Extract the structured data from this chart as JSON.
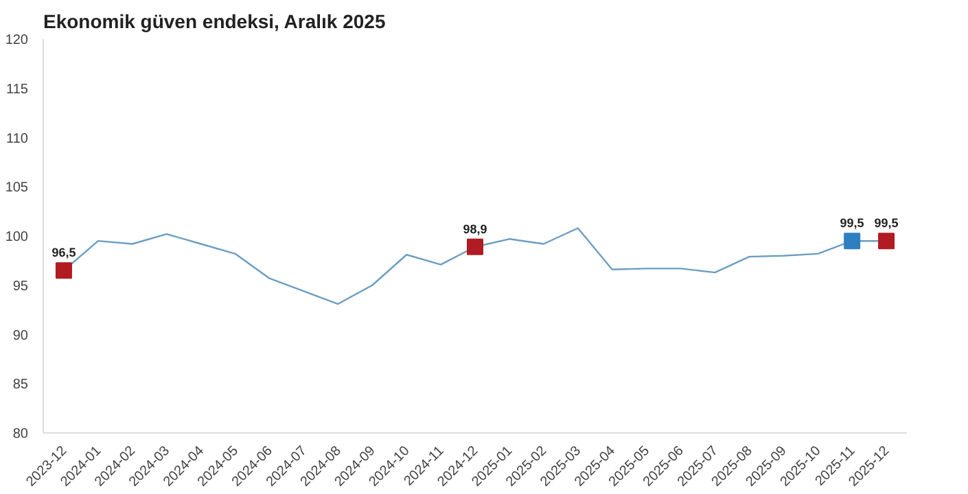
{
  "chart_data": {
    "type": "line",
    "title": "Ekonomik güven endeksi, Aralık 2025",
    "categories": [
      "2023-12",
      "2024-01",
      "2024-02",
      "2024-03",
      "2024-04",
      "2024-05",
      "2024-06",
      "2024-07",
      "2024-08",
      "2024-09",
      "2024-10",
      "2024-11",
      "2024-12",
      "2025-01",
      "2025-02",
      "2025-03",
      "2025-04",
      "2025-05",
      "2025-06",
      "2025-07",
      "2025-08",
      "2025-09",
      "2025-10",
      "2025-11",
      "2025-12"
    ],
    "series": [
      {
        "color": "#6b9dc2",
        "marker": "none",
        "values": [
          96.5,
          99.5,
          99.2,
          100.2,
          99.2,
          98.2,
          95.7,
          94.4,
          93.1,
          95.0,
          98.1,
          97.1,
          98.9,
          99.7,
          99.2,
          100.8,
          96.6,
          96.7,
          96.7,
          96.3,
          97.9,
          98.0,
          98.2,
          99.5,
          99.5
        ]
      },
      {
        "type": "scatter",
        "marker": "square",
        "values": [
          96.5,
          null,
          null,
          null,
          null,
          null,
          null,
          null,
          null,
          null,
          null,
          null,
          98.9,
          null,
          null,
          null,
          null,
          null,
          null,
          null,
          null,
          null,
          null,
          99.5,
          99.5
        ],
        "colors": [
          "#b01c22",
          null,
          null,
          null,
          null,
          null,
          null,
          null,
          null,
          null,
          null,
          null,
          "#b01c22",
          null,
          null,
          null,
          null,
          null,
          null,
          null,
          null,
          null,
          null,
          "#2e7fbf",
          "#b01c22"
        ],
        "value_labels": [
          "96,5",
          null,
          null,
          null,
          null,
          null,
          null,
          null,
          null,
          null,
          null,
          null,
          "98,9",
          null,
          null,
          null,
          null,
          null,
          null,
          null,
          null,
          null,
          null,
          "99,5",
          "99,5"
        ]
      }
    ],
    "ylim": [
      80,
      120
    ],
    "yticks": [
      80,
      85,
      90,
      95,
      100,
      105,
      110,
      115,
      120
    ],
    "grid": false
  }
}
